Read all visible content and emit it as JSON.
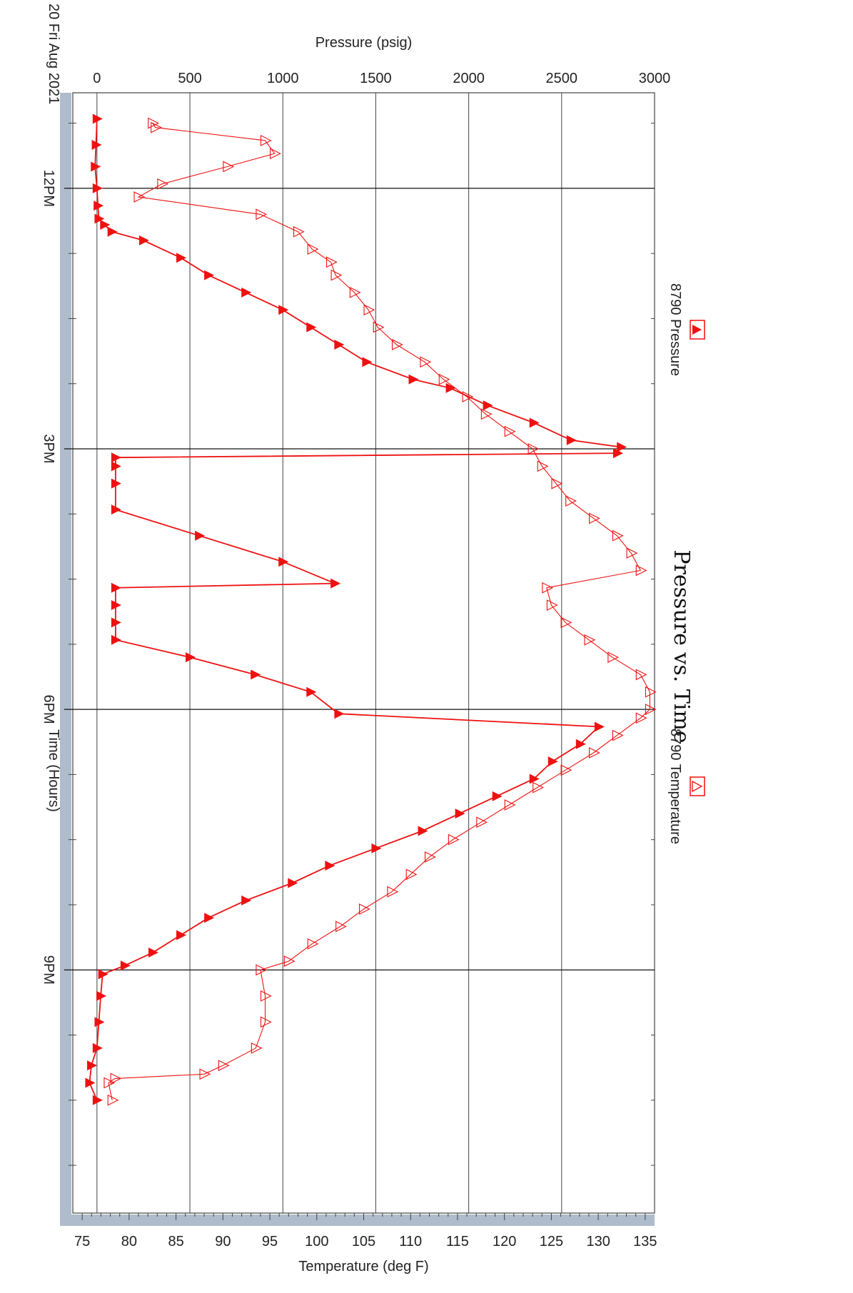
{
  "chart_data": {
    "type": "line",
    "title": "Pressure vs. Time",
    "date_label": "20 Fri Aug 2021",
    "xlabel": "Time (Hours)",
    "ylabel_left": "Pressure (psig)",
    "ylabel_right": "Temperature (deg F)",
    "x_unit": "hours",
    "xlim": [
      10.9,
      23.8
    ],
    "x_ticks": [
      {
        "x": 12,
        "label": "12PM"
      },
      {
        "x": 15,
        "label": "3PM"
      },
      {
        "x": 18,
        "label": "6PM"
      },
      {
        "x": 21,
        "label": "9PM"
      }
    ],
    "x_minor_ticks": [
      11.25,
      12.75,
      13.5,
      14.25,
      15.75,
      16.5,
      17.25,
      18.75,
      19.5,
      20.25,
      21.75,
      22.5,
      23.25
    ],
    "y_left": {
      "range": [
        -130,
        3000
      ],
      "ticks": [
        0,
        500,
        1000,
        1500,
        2000,
        2500,
        3000
      ]
    },
    "y_right": {
      "range": [
        74,
        136
      ],
      "ticks": [
        75,
        80,
        85,
        90,
        95,
        100,
        105,
        110,
        115,
        120,
        125,
        130,
        135
      ]
    },
    "grid": true,
    "legend": [
      {
        "name": "8790 Pressure",
        "marker": "filled-triangle",
        "position": "top-left"
      },
      {
        "name": "8790 Temperature",
        "marker": "open-triangle",
        "position": "top-right"
      }
    ],
    "colors": {
      "series": "#ee1111",
      "grid": "#444444",
      "axis_band": "#aebccb"
    },
    "series": [
      {
        "name": "8790 Pressure",
        "axis": "left",
        "marker": "filled",
        "x": [
          11.2,
          11.5,
          11.75,
          12.0,
          12.2,
          12.35,
          12.42,
          12.5,
          12.6,
          12.8,
          13.0,
          13.2,
          13.4,
          13.6,
          13.8,
          14.0,
          14.2,
          14.3,
          14.5,
          14.7,
          14.9,
          14.98,
          15.05,
          15.1,
          15.2,
          15.4,
          15.7,
          16.0,
          16.3,
          16.55,
          16.6,
          16.8,
          17.0,
          17.2,
          17.4,
          17.6,
          17.8,
          18.05,
          18.2,
          18.4,
          18.6,
          18.8,
          19.0,
          19.2,
          19.4,
          19.6,
          19.8,
          20.0,
          20.2,
          20.4,
          20.6,
          20.8,
          20.95,
          21.05,
          21.3,
          21.6,
          21.9,
          22.1,
          22.3,
          22.5
        ],
        "y": [
          0,
          -5,
          -10,
          0,
          5,
          10,
          40,
          80,
          250,
          450,
          600,
          800,
          1000,
          1150,
          1300,
          1450,
          1700,
          1900,
          2100,
          2350,
          2550,
          2820,
          2800,
          100,
          100,
          100,
          100,
          550,
          1000,
          1280,
          100,
          100,
          100,
          100,
          500,
          850,
          1150,
          1300,
          2700,
          2600,
          2450,
          2350,
          2150,
          1950,
          1750,
          1500,
          1250,
          1050,
          800,
          600,
          450,
          300,
          150,
          30,
          20,
          10,
          0,
          -30,
          -40,
          0
        ]
      },
      {
        "name": "8790 Temperature",
        "axis": "right",
        "marker": "open",
        "x": [
          11.25,
          11.3,
          11.45,
          11.6,
          11.75,
          11.95,
          12.1,
          12.3,
          12.5,
          12.7,
          12.85,
          13.0,
          13.2,
          13.4,
          13.6,
          13.8,
          14.0,
          14.2,
          14.4,
          14.6,
          14.8,
          15.0,
          15.2,
          15.4,
          15.6,
          15.8,
          16.0,
          16.2,
          16.4,
          16.6,
          16.8,
          17.0,
          17.2,
          17.4,
          17.6,
          17.8,
          18.0,
          18.1,
          18.3,
          18.5,
          18.7,
          18.9,
          19.1,
          19.3,
          19.5,
          19.7,
          19.9,
          20.1,
          20.3,
          20.5,
          20.7,
          20.9,
          21.0,
          21.3,
          21.6,
          21.9,
          22.1,
          22.2,
          22.25,
          22.3,
          22.5
        ],
        "y": [
          82.5,
          82.8,
          94.5,
          95.5,
          90.5,
          83.5,
          81.0,
          94.0,
          98.0,
          99.5,
          101.5,
          102.0,
          104.0,
          105.5,
          106.5,
          108.5,
          111.5,
          113.5,
          116.0,
          118.0,
          120.5,
          123.0,
          124.0,
          125.5,
          127.0,
          129.5,
          132.0,
          133.5,
          134.5,
          124.5,
          125.0,
          126.5,
          129.0,
          131.5,
          134.5,
          135.5,
          135.5,
          134.5,
          132.0,
          129.5,
          126.5,
          123.5,
          120.5,
          117.5,
          114.5,
          112.0,
          110.0,
          108.0,
          105.0,
          102.5,
          99.5,
          97.0,
          94.0,
          94.5,
          94.5,
          93.5,
          90.0,
          88.0,
          78.5,
          77.8,
          78.2
        ]
      }
    ]
  }
}
